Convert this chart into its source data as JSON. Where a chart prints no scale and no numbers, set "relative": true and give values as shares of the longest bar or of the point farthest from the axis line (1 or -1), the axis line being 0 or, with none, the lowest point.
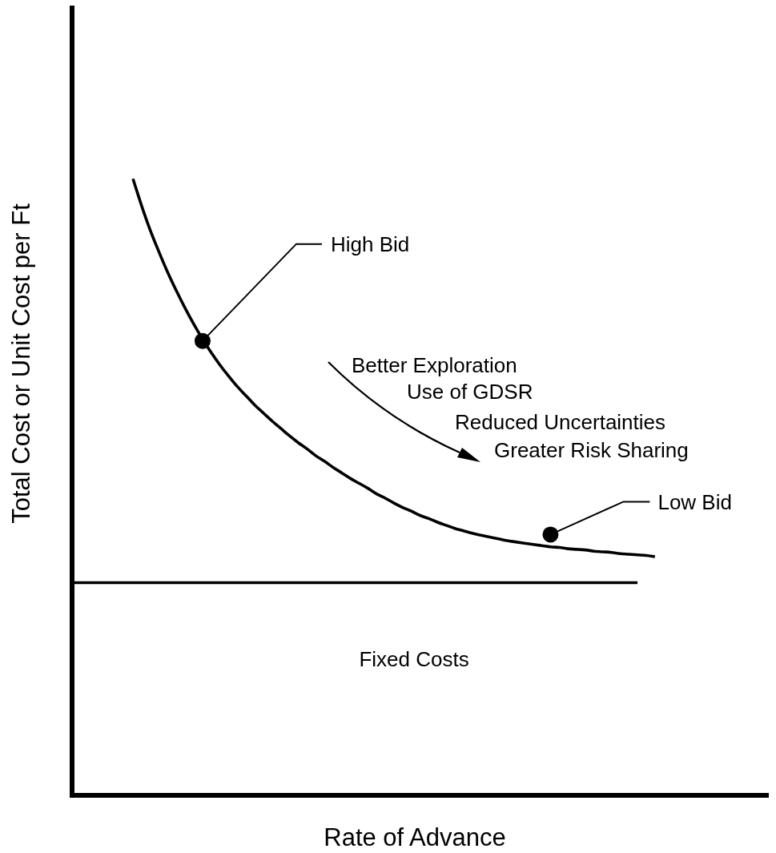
{
  "chart_data": {
    "type": "line",
    "xlabel": "Rate of Advance",
    "ylabel": "Total Cost or Unit Cost per Ft",
    "relative": true,
    "tick_labels": false,
    "legend": false,
    "grid": false,
    "categories": [
      null,
      null,
      null,
      null,
      null,
      null,
      null,
      null,
      null,
      null,
      null,
      null,
      null,
      null,
      null,
      null,
      null,
      null,
      null,
      null,
      null,
      null,
      null,
      null,
      null,
      null,
      null,
      null,
      null,
      null,
      null,
      null,
      null,
      null,
      null,
      null,
      null,
      null,
      null,
      null,
      null,
      null,
      null,
      null,
      null,
      null,
      null,
      null,
      null,
      null,
      null,
      null,
      null,
      null,
      null,
      null,
      null,
      null,
      null,
      null,
      null,
      null,
      null,
      null,
      null,
      null,
      null,
      null,
      null,
      null,
      null,
      null,
      null,
      null,
      null,
      null,
      null,
      null,
      null,
      null,
      null
    ],
    "series": [
      {
        "type": "line",
        "color": "#000000",
        "values": [
          null,
          null,
          null,
          null,
          null,
          null,
          null,
          1.0,
          0.956,
          0.916,
          0.881,
          0.848,
          0.818,
          0.79,
          0.764,
          0.74,
          0.718,
          0.698,
          0.68,
          0.663,
          0.648,
          0.633,
          0.62,
          0.607,
          0.595,
          0.583,
          0.572,
          0.562,
          0.551,
          0.542,
          0.532,
          0.523,
          0.514,
          0.506,
          0.498,
          0.489,
          0.482,
          0.474,
          0.467,
          0.461,
          0.454,
          0.449,
          0.443,
          0.438,
          0.433,
          0.429,
          0.425,
          0.422,
          0.419,
          0.416,
          0.413,
          0.411,
          0.409,
          0.407,
          0.405,
          0.403,
          0.402,
          0.4,
          0.399,
          0.398,
          0.396,
          0.395,
          0.394,
          0.392,
          0.391,
          0.39,
          0.389,
          0.387,
          null,
          null,
          null,
          null,
          null,
          null,
          null,
          null,
          null,
          null,
          null,
          null,
          null
        ]
      },
      {
        "type": "line",
        "color": "#000000",
        "values": [
          0.345,
          0.345,
          0.345,
          0.345,
          0.345,
          0.345,
          0.345,
          0.345,
          0.345,
          0.345,
          0.345,
          0.345,
          0.345,
          0.345,
          0.345,
          0.345,
          0.345,
          0.345,
          0.345,
          0.345,
          0.345,
          0.345,
          0.345,
          0.345,
          0.345,
          0.345,
          0.345,
          0.345,
          0.345,
          0.345,
          0.345,
          0.345,
          0.345,
          0.345,
          0.345,
          0.345,
          0.345,
          0.345,
          0.345,
          0.345,
          0.345,
          0.345,
          0.345,
          0.345,
          0.345,
          0.345,
          0.345,
          0.345,
          0.345,
          0.345,
          0.345,
          0.345,
          0.345,
          0.345,
          0.345,
          0.345,
          0.345,
          0.345,
          0.345,
          0.345,
          0.345,
          0.345,
          0.345,
          0.345,
          0.345,
          0.345,
          null,
          null,
          null,
          null,
          null,
          null,
          null,
          null,
          null,
          null,
          null,
          null,
          null,
          null,
          null
        ]
      },
      {
        "name": "High Bid",
        "type": "line",
        "marker": "circle",
        "color": "#000000",
        "values": [
          null,
          null,
          null,
          null,
          null,
          null,
          null,
          null,
          null,
          null,
          null,
          null,
          null,
          null,
          null,
          0.737,
          null,
          null,
          null,
          null,
          null,
          null,
          null,
          null,
          null,
          null,
          null,
          null,
          null,
          null,
          null,
          null,
          null,
          null,
          null,
          null,
          null,
          null,
          null,
          null,
          null,
          null,
          null,
          null,
          null,
          null,
          null,
          null,
          null,
          null,
          null,
          null,
          null,
          null,
          null,
          null,
          null,
          null,
          null,
          null,
          null,
          null,
          null,
          null,
          null,
          null,
          null,
          null,
          null,
          null,
          null,
          null,
          null,
          null,
          null,
          null,
          null,
          null,
          null,
          null,
          null
        ]
      },
      {
        "name": "Low Bid",
        "type": "line",
        "marker": "circle",
        "color": "#000000",
        "values": [
          null,
          null,
          null,
          null,
          null,
          null,
          null,
          null,
          null,
          null,
          null,
          null,
          null,
          null,
          null,
          null,
          null,
          null,
          null,
          null,
          null,
          null,
          null,
          null,
          null,
          null,
          null,
          null,
          null,
          null,
          null,
          null,
          null,
          null,
          null,
          null,
          null,
          null,
          null,
          null,
          null,
          null,
          null,
          null,
          null,
          null,
          null,
          null,
          null,
          null,
          null,
          null,
          null,
          null,
          null,
          0.423,
          null,
          null,
          null,
          null,
          null,
          null,
          null,
          null,
          null,
          null,
          null,
          null,
          null,
          null,
          null,
          null,
          null,
          null,
          null,
          null,
          null,
          null,
          null,
          null,
          null
        ]
      }
    ],
    "annotations": [
      "Better Exploration",
      "Use of GDSR",
      "Reduced Uncertainties",
      "Greater Risk Sharing",
      "Fixed Costs"
    ]
  }
}
